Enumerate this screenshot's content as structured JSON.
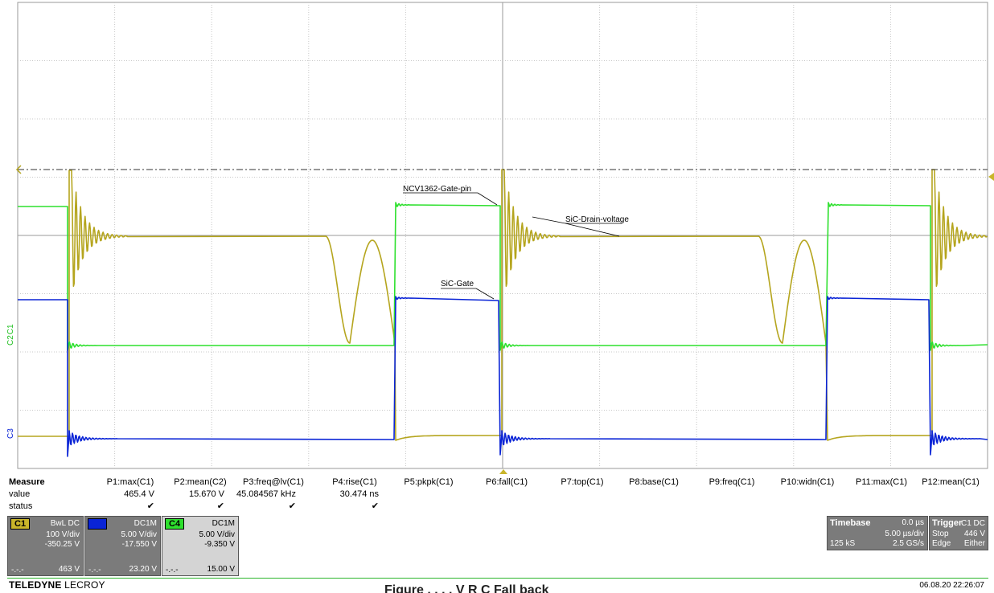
{
  "traces": {
    "drain_label": "SiC-Drain-voltage",
    "gatepin_label": "NCV1362-Gate-pin",
    "sicgate_label": "SiC-Gate",
    "c1_marker": "C1",
    "c2_marker": "C2",
    "c3_marker": "C3",
    "colors": {
      "c1": "#b5a51e",
      "c2": "#0a24d6",
      "c4": "#2ee02e"
    }
  },
  "measure": {
    "row_labels": [
      "Measure",
      "value",
      "status"
    ],
    "params": [
      {
        "name": "P1:max(C1)",
        "value": "465.4 V",
        "status": "✔"
      },
      {
        "name": "P2:mean(C2)",
        "value": "15.670 V",
        "status": "✔"
      },
      {
        "name": "P3:freq@lv(C1)",
        "value": "45.084567 kHz",
        "status": "✔"
      },
      {
        "name": "P4:rise(C1)",
        "value": "30.474 ns",
        "status": "✔"
      },
      {
        "name": "P5:pkpk(C1)",
        "value": "",
        "status": ""
      },
      {
        "name": "P6:fall(C1)",
        "value": "",
        "status": ""
      },
      {
        "name": "P7:top(C1)",
        "value": "",
        "status": ""
      },
      {
        "name": "P8:base(C1)",
        "value": "",
        "status": ""
      },
      {
        "name": "P9:freq(C1)",
        "value": "",
        "status": ""
      },
      {
        "name": "P10:widn(C1)",
        "value": "",
        "status": ""
      },
      {
        "name": "P11:max(C1)",
        "value": "",
        "status": ""
      },
      {
        "name": "P12:mean(C1)",
        "value": "",
        "status": ""
      }
    ]
  },
  "channels": [
    {
      "tag": "C1",
      "coupling": "BwL DC",
      "vdiv": "100 V/div",
      "offset": "-350.25 V",
      "dash": "-.-.-",
      "level": "463 V"
    },
    {
      "tag": "C2",
      "coupling": "DC1M",
      "vdiv": "5.00 V/div",
      "offset": "-17.550 V",
      "dash": "-.-.-",
      "level": "23.20 V"
    },
    {
      "tag": "C4",
      "coupling": "DC1M",
      "vdiv": "5.00 V/div",
      "offset": "-9.350 V",
      "dash": "-.-.-",
      "level": "15.00 V"
    }
  ],
  "timebase": {
    "label": "Timebase",
    "delay": "0.0 µs",
    "tdiv": "5.00 µs/div",
    "samples": "125 kS",
    "rate": "2.5 GS/s"
  },
  "trigger": {
    "label": "Trigger",
    "source": "C1 DC",
    "mode": "Stop",
    "level": "446 V",
    "type": "Edge",
    "slope": "Either"
  },
  "footer": {
    "brand_a": "TELEDYNE",
    "brand_b": "LECROY",
    "timestamp": "06.08.20 22:26:07",
    "caption": "Figure . . . . V R C  Fall back"
  }
}
